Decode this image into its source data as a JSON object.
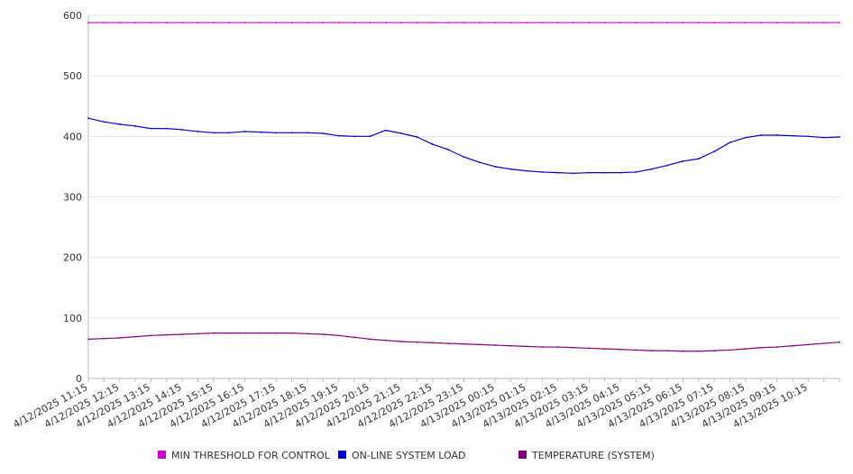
{
  "chart_data": {
    "type": "line",
    "title": "",
    "xlabel": "",
    "ylabel": "",
    "ylim": [
      0,
      600
    ],
    "y_ticks": [
      0,
      100,
      200,
      300,
      400,
      500,
      600
    ],
    "grid": true,
    "legend_position": "bottom",
    "x_tick_labels": [
      "4/12/2025 11:15",
      "4/12/2025 12:15",
      "4/12/2025 13:15",
      "4/12/2025 14:15",
      "4/12/2025 15:15",
      "4/12/2025 16:15",
      "4/12/2025 17:15",
      "4/12/2025 18:15",
      "4/12/2025 19:15",
      "4/12/2025 20:15",
      "4/12/2025 21:15",
      "4/12/2025 22:15",
      "4/12/2025 23:15",
      "4/13/2025 00:15",
      "4/13/2025 01:15",
      "4/13/2025 02:15",
      "4/13/2025 03:15",
      "4/13/2025 04:15",
      "4/13/2025 05:15",
      "4/13/2025 06:15",
      "4/13/2025 07:15",
      "4/13/2025 08:15",
      "4/13/2025 09:15",
      "4/13/2025 10:15"
    ],
    "x": [
      "4/12/2025 11:15",
      "4/12/2025 11:45",
      "4/12/2025 12:15",
      "4/12/2025 12:45",
      "4/12/2025 13:15",
      "4/12/2025 13:45",
      "4/12/2025 14:15",
      "4/12/2025 14:45",
      "4/12/2025 15:15",
      "4/12/2025 15:45",
      "4/12/2025 16:15",
      "4/12/2025 16:45",
      "4/12/2025 17:15",
      "4/12/2025 17:45",
      "4/12/2025 18:15",
      "4/12/2025 18:45",
      "4/12/2025 19:15",
      "4/12/2025 19:45",
      "4/12/2025 20:15",
      "4/12/2025 20:45",
      "4/12/2025 21:15",
      "4/12/2025 21:45",
      "4/12/2025 22:15",
      "4/12/2025 22:45",
      "4/12/2025 23:15",
      "4/12/2025 23:45",
      "4/13/2025 00:15",
      "4/13/2025 00:45",
      "4/13/2025 01:15",
      "4/13/2025 01:45",
      "4/13/2025 02:15",
      "4/13/2025 02:45",
      "4/13/2025 03:15",
      "4/13/2025 03:45",
      "4/13/2025 04:15",
      "4/13/2025 04:45",
      "4/13/2025 05:15",
      "4/13/2025 05:45",
      "4/13/2025 06:15",
      "4/13/2025 06:45",
      "4/13/2025 07:15",
      "4/13/2025 07:45",
      "4/13/2025 08:15",
      "4/13/2025 08:45",
      "4/13/2025 09:15",
      "4/13/2025 09:45",
      "4/13/2025 10:15",
      "4/13/2025 10:45",
      "4/13/2025 11:00"
    ],
    "series": [
      {
        "name": "MIN THRESHOLD FOR CONTROL",
        "color": "#cc00cc",
        "values": [
          588,
          588,
          588,
          588,
          588,
          588,
          588,
          588,
          588,
          588,
          588,
          588,
          588,
          588,
          588,
          588,
          588,
          588,
          588,
          588,
          588,
          588,
          588,
          588,
          588,
          588,
          588,
          588,
          588,
          588,
          588,
          588,
          588,
          588,
          588,
          588,
          588,
          588,
          588,
          588,
          588,
          588,
          588,
          588,
          588,
          588,
          588,
          588,
          588
        ]
      },
      {
        "name": "ON-LINE SYSTEM LOAD",
        "color": "#0000cc",
        "values": [
          430,
          424,
          420,
          417,
          413,
          413,
          411,
          408,
          406,
          406,
          408,
          407,
          406,
          406,
          406,
          405,
          401,
          400,
          400,
          410,
          405,
          399,
          387,
          378,
          366,
          357,
          350,
          346,
          343,
          341,
          340,
          339,
          340,
          340,
          340,
          341,
          346,
          352,
          359,
          363,
          375,
          390,
          398,
          402,
          402,
          401,
          400,
          398,
          399
        ]
      },
      {
        "name": "TEMPERATURE (SYSTEM)",
        "color": "#800080",
        "values": [
          65,
          66,
          67,
          69,
          71,
          72,
          73,
          74,
          75,
          75,
          75,
          75,
          75,
          75,
          74,
          73,
          71,
          68,
          65,
          63,
          61,
          60,
          59,
          58,
          57,
          56,
          55,
          54,
          53,
          52,
          52,
          51,
          50,
          49,
          48,
          47,
          46,
          46,
          45,
          45,
          46,
          47,
          49,
          51,
          52,
          54,
          56,
          58,
          60
        ]
      }
    ]
  }
}
